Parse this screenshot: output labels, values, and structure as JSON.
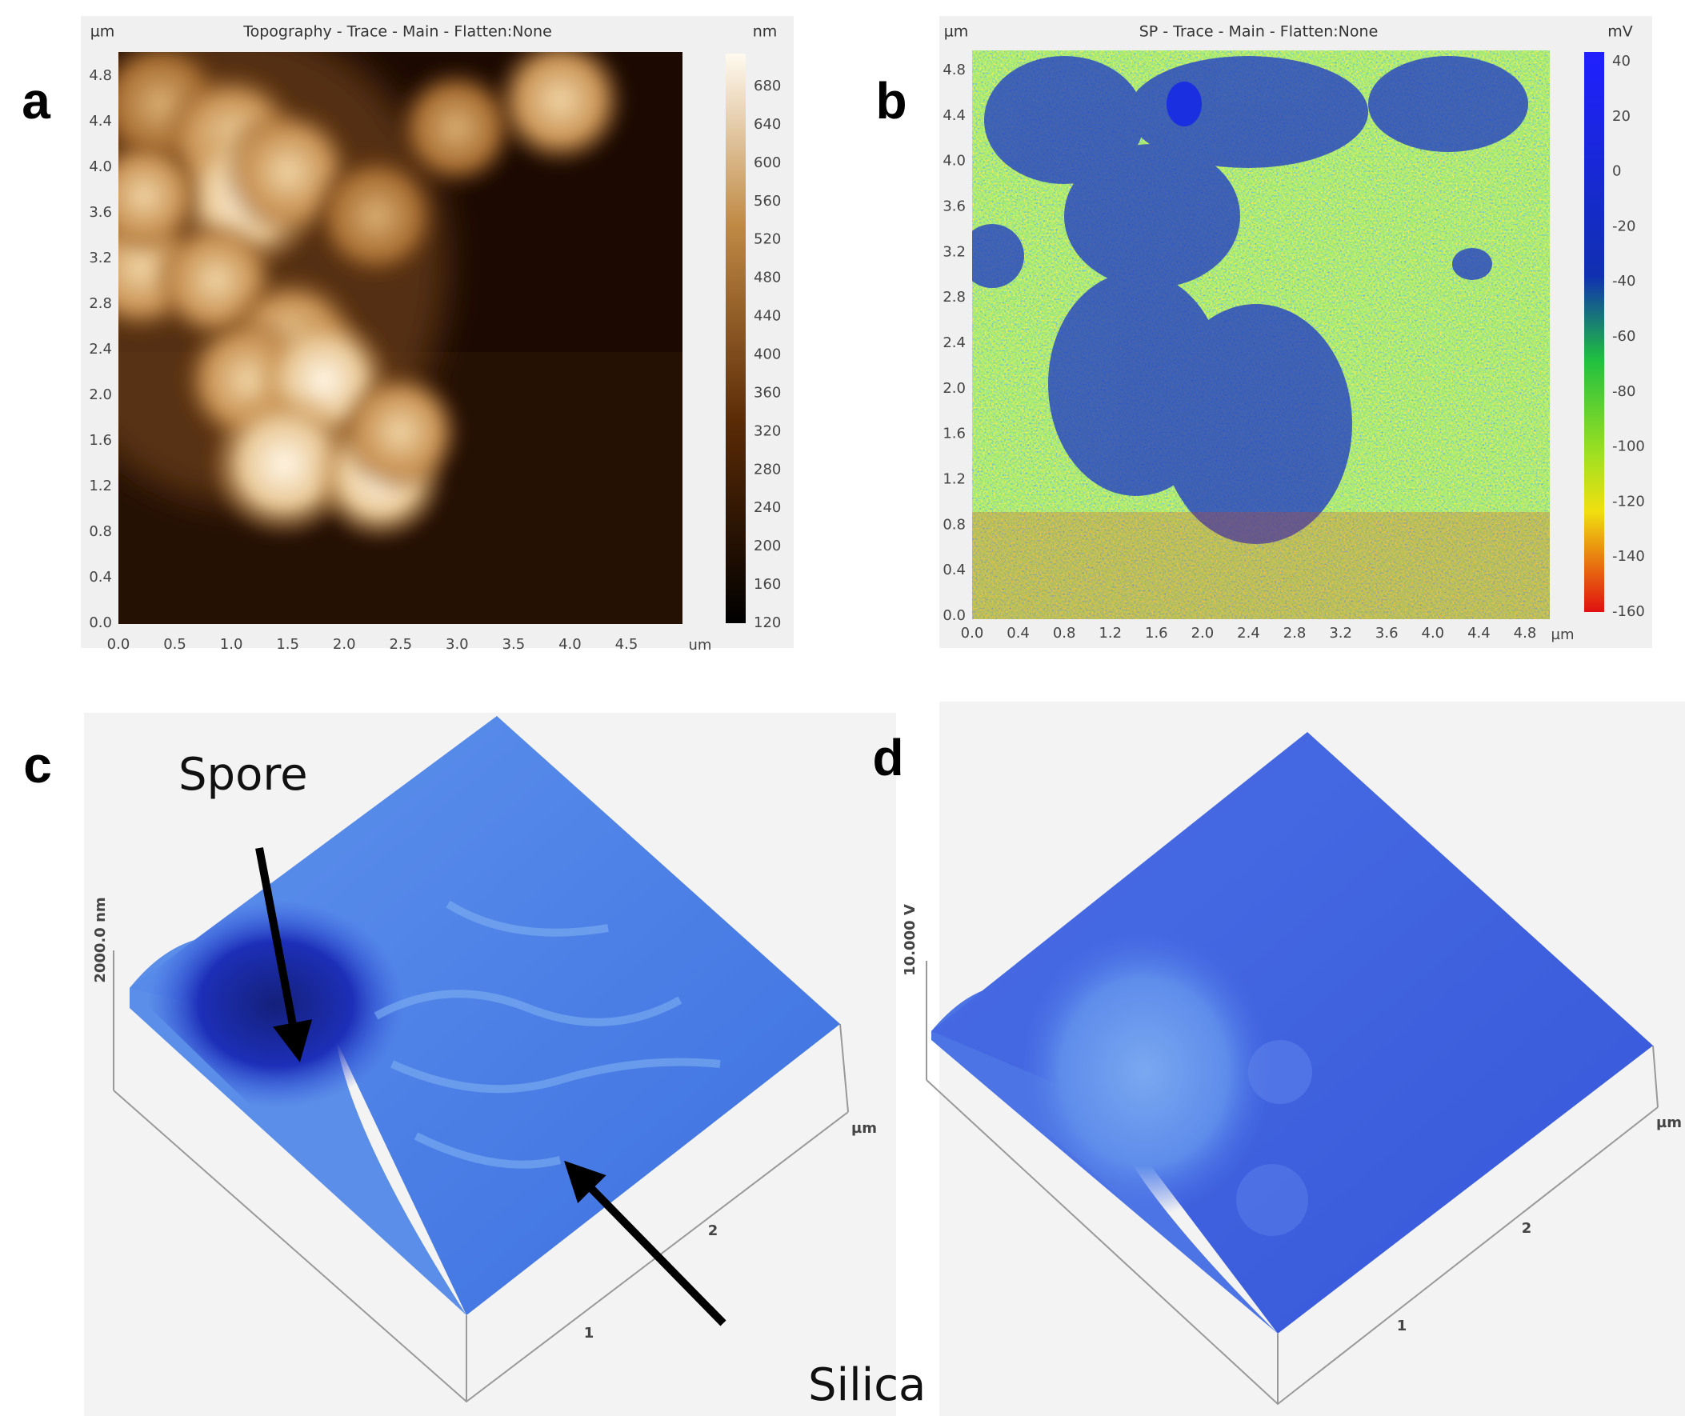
{
  "panels": [
    {
      "label": "a",
      "title": "Topography - Trace - Main - Flatten:None",
      "y_unit": "µm",
      "colorbar_unit": "nm",
      "x_unit": "um",
      "y_ticks": [
        "4.8",
        "4.4",
        "4.0",
        "3.6",
        "3.2",
        "2.8",
        "2.4",
        "2.0",
        "1.6",
        "1.2",
        "0.8",
        "0.4",
        "0.0"
      ],
      "x_ticks": [
        "0.0",
        "0.5",
        "1.0",
        "1.5",
        "2.0",
        "2.5",
        "3.0",
        "3.5",
        "4.0",
        "4.5"
      ],
      "colorbar_ticks": [
        "680",
        "640",
        "600",
        "560",
        "520",
        "480",
        "440",
        "400",
        "360",
        "320",
        "280",
        "240",
        "200",
        "160",
        "120"
      ]
    },
    {
      "label": "b",
      "title": "SP - Trace - Main - Flatten:None",
      "y_unit": "µm",
      "colorbar_unit": "mV",
      "x_unit": "µm",
      "y_ticks": [
        "4.8",
        "4.4",
        "4.0",
        "3.6",
        "3.2",
        "2.8",
        "2.4",
        "2.0",
        "1.6",
        "1.2",
        "0.8",
        "0.4",
        "0.0"
      ],
      "x_ticks": [
        "0.0",
        "0.4",
        "0.8",
        "1.2",
        "1.6",
        "2.0",
        "2.4",
        "2.8",
        "3.2",
        "3.6",
        "4.0",
        "4.4",
        "4.8"
      ],
      "colorbar_ticks": [
        "40",
        "20",
        "0",
        "-20",
        "-40",
        "-60",
        "-80",
        "-100",
        "-120",
        "-140",
        "-160"
      ]
    },
    {
      "label": "c",
      "annotations": [
        "Spore",
        "Silica"
      ],
      "z_axis_label": "2000.0 nm",
      "axis_unit": "µm",
      "axis_ticks": [
        "1",
        "2"
      ]
    },
    {
      "label": "d",
      "z_axis_label": "10.000 V",
      "axis_unit": "µm",
      "axis_ticks": [
        "1",
        "2"
      ]
    }
  ]
}
